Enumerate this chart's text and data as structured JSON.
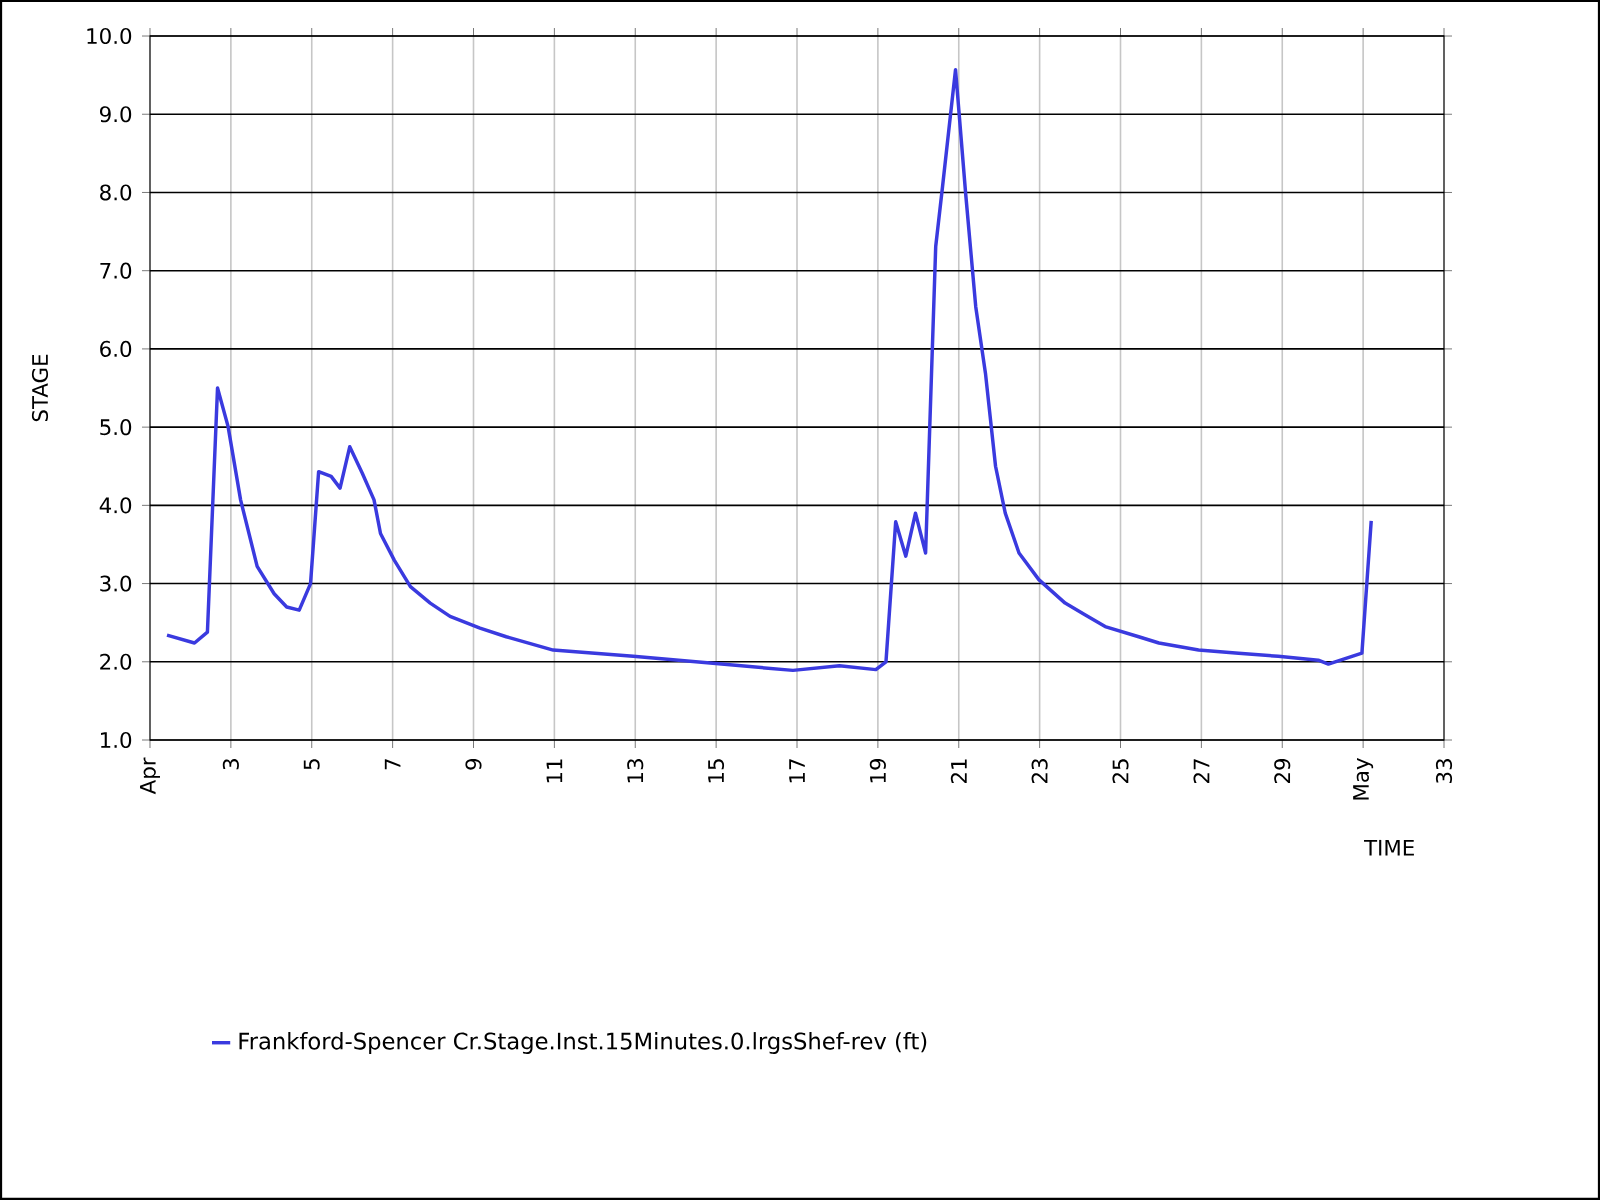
{
  "chart_data": {
    "type": "line",
    "xlabel": "TIME",
    "ylabel": "STAGE",
    "xlim": [
      1,
      33
    ],
    "ylim": [
      1,
      10
    ],
    "xticks": [
      {
        "value": 1,
        "label": "Apr"
      },
      3,
      5,
      7,
      9,
      11,
      13,
      15,
      17,
      19,
      21,
      23,
      25,
      27,
      29,
      {
        "value": 31,
        "label": "May"
      },
      33
    ],
    "yticks": [
      {
        "value": 1,
        "label": "1.0"
      },
      {
        "value": 2,
        "label": "2.0"
      },
      {
        "value": 3,
        "label": "3.0"
      },
      {
        "value": 4,
        "label": "4.0"
      },
      {
        "value": 5,
        "label": "5.0"
      },
      {
        "value": 6,
        "label": "6.0"
      },
      {
        "value": 7,
        "label": "7.0"
      },
      {
        "value": 8,
        "label": "8.0"
      },
      {
        "value": 9,
        "label": "9.0"
      },
      {
        "value": 10,
        "label": "10.0"
      }
    ],
    "grid": true,
    "legend": "bottom",
    "marker": "none",
    "line_style": "solid",
    "series": [
      {
        "name": "Frankford-Spencer Cr.Stage.Inst.15Minutes.0.lrgsShef-rev (ft)",
        "color": "#3a3adf",
        "x": [
          1.42,
          2.1,
          2.42,
          2.67,
          2.93,
          3.24,
          3.65,
          4.07,
          4.38,
          4.69,
          4.97,
          5.17,
          5.48,
          5.7,
          5.94,
          6.25,
          6.54,
          6.7,
          7.04,
          7.44,
          7.93,
          8.42,
          9.16,
          9.81,
          10.97,
          12.95,
          14.92,
          16.9,
          18.05,
          18.95,
          19.2,
          19.44,
          19.69,
          19.93,
          20.18,
          20.43,
          20.6,
          20.92,
          21.17,
          21.42,
          21.66,
          21.91,
          22.15,
          22.49,
          22.98,
          23.63,
          24.12,
          24.62,
          25.45,
          25.95,
          26.93,
          27.92,
          28.9,
          29.89,
          30.14,
          30.97,
          31.2
        ],
        "values": [
          2.34,
          2.24,
          2.38,
          5.5,
          5.01,
          4.07,
          3.22,
          2.87,
          2.7,
          2.66,
          3.0,
          4.43,
          4.37,
          4.22,
          4.75,
          4.41,
          4.07,
          3.64,
          3.3,
          2.96,
          2.75,
          2.58,
          2.43,
          2.32,
          2.15,
          2.07,
          1.98,
          1.89,
          1.95,
          1.9,
          2.0,
          3.79,
          3.35,
          3.9,
          3.39,
          7.31,
          8.08,
          9.57,
          7.99,
          6.54,
          5.69,
          4.5,
          3.9,
          3.39,
          3.05,
          2.75,
          2.6,
          2.45,
          2.32,
          2.24,
          2.15,
          2.11,
          2.07,
          2.02,
          1.97,
          2.11,
          3.8
        ]
      }
    ]
  }
}
